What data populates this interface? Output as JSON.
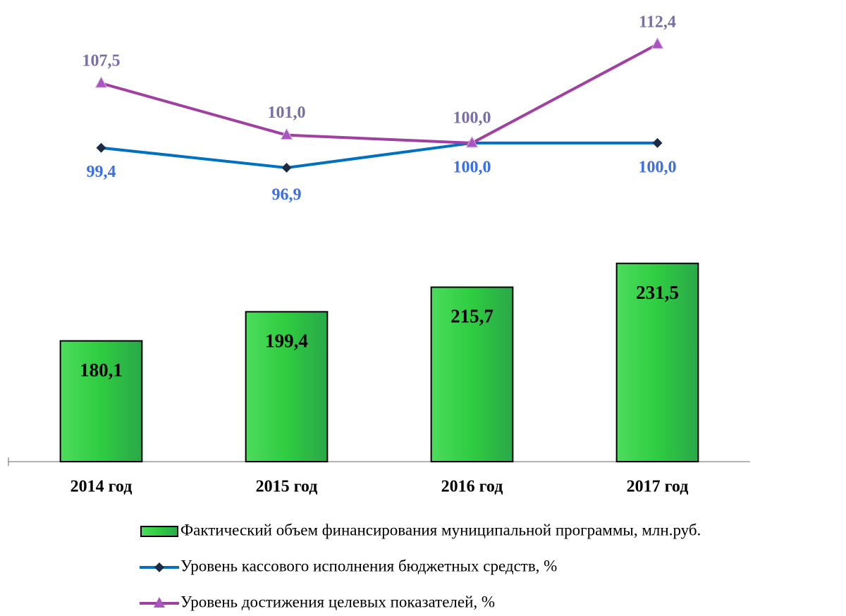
{
  "chart_data": {
    "type": "combo",
    "categories": [
      "2014 год",
      "2015 год",
      "2016 год",
      "2017 год"
    ],
    "series": [
      {
        "name": "Фактический объем финансирования муниципальной программы, млн.руб.",
        "type": "bar",
        "color": "#2ecc40",
        "values": [
          180.1,
          199.4,
          215.7,
          231.5
        ],
        "value_labels": [
          "180,1",
          "199,4",
          "215,7",
          "231,5"
        ]
      },
      {
        "name": "Уровень кассового исполнения бюджетных средств, %",
        "type": "line",
        "axis": "y2",
        "color": "#0070c0",
        "marker": "diamond",
        "values": [
          99.4,
          96.9,
          100.0,
          100.0
        ],
        "value_labels": [
          "99,4",
          "96,9",
          "100,0",
          "100,0"
        ]
      },
      {
        "name": "Уровень достижения целевых показателей, %",
        "type": "line",
        "axis": "y2",
        "color": "#a040a0",
        "marker": "triangle",
        "values": [
          107.5,
          101.0,
          100.0,
          112.4
        ],
        "value_labels": [
          "107,5",
          "101,0",
          "100,0",
          "112,4"
        ]
      }
    ],
    "ylim": [
      100,
      380
    ],
    "y2lim": [
      60,
      113
    ],
    "legend": "bottom",
    "grid": false
  }
}
